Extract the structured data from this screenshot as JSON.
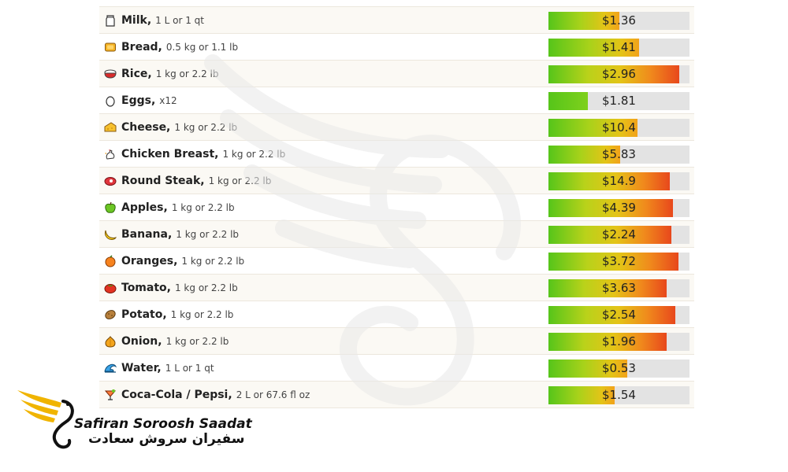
{
  "items": [
    {
      "name": "Milk,",
      "unit": "1 L or 1 qt",
      "price": "$1.36",
      "level": 0.5,
      "icon": "milk-icon"
    },
    {
      "name": "Bread,",
      "unit": "0.5 kg or 1.1 lb",
      "price": "$1.41",
      "level": 0.64,
      "icon": "bread-icon"
    },
    {
      "name": "Rice,",
      "unit": "1 kg or 2.2 lb",
      "price": "$2.96",
      "level": 0.93,
      "icon": "rice-icon"
    },
    {
      "name": "Eggs,",
      "unit": "x12",
      "price": "$1.81",
      "level": 0.28,
      "icon": "egg-icon"
    },
    {
      "name": "Cheese,",
      "unit": "1 kg or 2.2 lb",
      "price": "$10.4",
      "level": 0.63,
      "icon": "cheese-icon"
    },
    {
      "name": "Chicken Breast,",
      "unit": "1 kg or 2.2 lb",
      "price": "$5.83",
      "level": 0.51,
      "icon": "chicken-icon"
    },
    {
      "name": "Round Steak,",
      "unit": "1 kg or 2.2 lb",
      "price": "$14.9",
      "level": 0.86,
      "icon": "steak-icon"
    },
    {
      "name": "Apples,",
      "unit": "1 kg or 2.2 lb",
      "price": "$4.39",
      "level": 0.88,
      "icon": "apple-icon"
    },
    {
      "name": "Banana,",
      "unit": "1 kg or 2.2 lb",
      "price": "$2.24",
      "level": 0.87,
      "icon": "banana-icon"
    },
    {
      "name": "Oranges,",
      "unit": "1 kg or 2.2 lb",
      "price": "$3.72",
      "level": 0.92,
      "icon": "orange-icon"
    },
    {
      "name": "Tomato,",
      "unit": "1 kg or 2.2 lb",
      "price": "$3.63",
      "level": 0.84,
      "icon": "tomato-icon"
    },
    {
      "name": "Potato,",
      "unit": "1 kg or 2.2 lb",
      "price": "$2.54",
      "level": 0.9,
      "icon": "potato-icon"
    },
    {
      "name": "Onion,",
      "unit": "1 kg or 2.2 lb",
      "price": "$1.96",
      "level": 0.84,
      "icon": "onion-icon"
    },
    {
      "name": "Water,",
      "unit": "1 L or 1 qt",
      "price": "$0.53",
      "level": 0.56,
      "icon": "water-icon"
    },
    {
      "name": "Coca-Cola / Pepsi,",
      "unit": "2 L or 67.6 fl oz",
      "price": "$1.54",
      "level": 0.47,
      "icon": "cocktail-icon"
    }
  ],
  "colors": {
    "bar_start": "#56c51a",
    "bar_mid": "#e4c417",
    "bar_end": "#e8481c",
    "bar_track": "#e3e3e3",
    "brand_gold": "#f0b400"
  },
  "brand": {
    "name_en": "Safiran Soroosh Saadat",
    "name_fa": "سفیران سروش سعادت"
  }
}
